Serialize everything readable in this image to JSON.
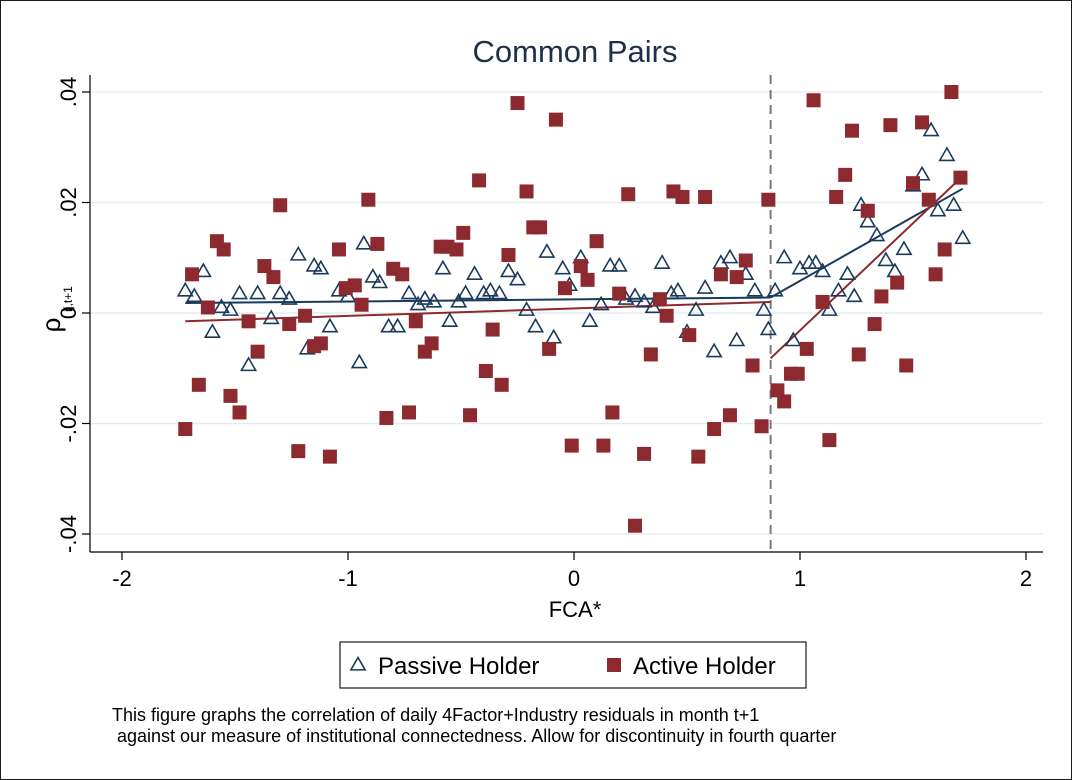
{
  "chart_data": {
    "type": "scatter",
    "title": "Common Pairs",
    "xlabel": "FCA*",
    "ylabel": "ρ",
    "ylabel_subscript": "ij,t+1",
    "xlim": [
      -2,
      2
    ],
    "ylim": [
      -0.04,
      0.04
    ],
    "x_ticks": [
      -2,
      -1,
      0,
      1,
      2
    ],
    "x_tick_labels": [
      "-2",
      "-1",
      "0",
      "1",
      "2"
    ],
    "y_ticks": [
      -0.04,
      -0.02,
      0,
      0.02,
      0.04
    ],
    "y_tick_labels": [
      "-.04",
      "-.02",
      "0",
      ".02",
      ".04"
    ],
    "grid": true,
    "discontinuity_x": 0.87,
    "legend_position": "bottom",
    "series": [
      {
        "name": "Passive Holder",
        "marker": "triangle-hollow",
        "color": "#1a3a5c",
        "points": [
          [
            -1.72,
            0.004
          ],
          [
            -1.68,
            0.003
          ],
          [
            -1.64,
            0.0075
          ],
          [
            -1.6,
            -0.0035
          ],
          [
            -1.56,
            0.001
          ],
          [
            -1.52,
            0.0005
          ],
          [
            -1.48,
            0.0035
          ],
          [
            -1.44,
            -0.0095
          ],
          [
            -1.4,
            0.0035
          ],
          [
            -1.34,
            -0.001
          ],
          [
            -1.3,
            0.0035
          ],
          [
            -1.26,
            0.0025
          ],
          [
            -1.22,
            0.0105
          ],
          [
            -1.18,
            -0.0065
          ],
          [
            -1.15,
            0.0085
          ],
          [
            -1.12,
            0.008
          ],
          [
            -1.08,
            -0.0025
          ],
          [
            -1.04,
            0.004
          ],
          [
            -1.0,
            0.003
          ],
          [
            -0.95,
            -0.009
          ],
          [
            -0.93,
            0.0125
          ],
          [
            -0.89,
            0.0065
          ],
          [
            -0.86,
            0.0055
          ],
          [
            -0.82,
            -0.0025
          ],
          [
            -0.78,
            -0.0025
          ],
          [
            -0.73,
            0.0035
          ],
          [
            -0.69,
            0.0015
          ],
          [
            -0.66,
            0.0025
          ],
          [
            -0.62,
            0.002
          ],
          [
            -0.58,
            0.008
          ],
          [
            -0.55,
            -0.0015
          ],
          [
            -0.51,
            0.002
          ],
          [
            -0.48,
            0.0035
          ],
          [
            -0.44,
            0.007
          ],
          [
            -0.4,
            0.0035
          ],
          [
            -0.37,
            0.004
          ],
          [
            -0.33,
            0.0035
          ],
          [
            -0.29,
            0.0075
          ],
          [
            -0.25,
            0.006
          ],
          [
            -0.21,
            0.0005
          ],
          [
            -0.17,
            -0.0025
          ],
          [
            -0.12,
            0.011
          ],
          [
            -0.09,
            -0.0045
          ],
          [
            -0.05,
            0.008
          ],
          [
            -0.02,
            0.005
          ],
          [
            0.03,
            0.01
          ],
          [
            0.07,
            -0.0015
          ],
          [
            0.12,
            0.0015
          ],
          [
            0.16,
            0.0085
          ],
          [
            0.2,
            0.0085
          ],
          [
            0.23,
            0.0025
          ],
          [
            0.27,
            0.003
          ],
          [
            0.31,
            0.002
          ],
          [
            0.35,
            0.001
          ],
          [
            0.39,
            0.009
          ],
          [
            0.43,
            0.0035
          ],
          [
            0.46,
            0.004
          ],
          [
            0.5,
            -0.0035
          ],
          [
            0.54,
            0.0005
          ],
          [
            0.58,
            0.0045
          ],
          [
            0.62,
            -0.007
          ],
          [
            0.65,
            0.009
          ],
          [
            0.69,
            0.01
          ],
          [
            0.72,
            -0.005
          ],
          [
            0.76,
            0.007
          ],
          [
            0.8,
            0.004
          ],
          [
            0.84,
            0.0005
          ],
          [
            0.86,
            -0.003
          ],
          [
            0.89,
            0.004
          ],
          [
            0.93,
            0.01
          ],
          [
            0.97,
            -0.005
          ],
          [
            1.0,
            0.008
          ],
          [
            1.04,
            0.009
          ],
          [
            1.07,
            0.009
          ],
          [
            1.1,
            0.0075
          ],
          [
            1.13,
            0.0005
          ],
          [
            1.17,
            0.004
          ],
          [
            1.21,
            0.007
          ],
          [
            1.24,
            0.003
          ],
          [
            1.27,
            0.0195
          ],
          [
            1.3,
            0.0165
          ],
          [
            1.34,
            0.014
          ],
          [
            1.38,
            0.0095
          ],
          [
            1.42,
            0.0075
          ],
          [
            1.46,
            0.0115
          ],
          [
            1.5,
            0.023
          ],
          [
            1.54,
            0.025
          ],
          [
            1.58,
            0.033
          ],
          [
            1.61,
            0.0185
          ],
          [
            1.65,
            0.0285
          ],
          [
            1.68,
            0.0195
          ],
          [
            1.72,
            0.0135
          ]
        ]
      },
      {
        "name": "Active Holder",
        "marker": "square-filled",
        "color": "#8c2a30",
        "points": [
          [
            -1.72,
            -0.021
          ],
          [
            -1.69,
            0.007
          ],
          [
            -1.66,
            -0.013
          ],
          [
            -1.62,
            0.001
          ],
          [
            -1.58,
            0.013
          ],
          [
            -1.55,
            0.0115
          ],
          [
            -1.52,
            -0.015
          ],
          [
            -1.48,
            -0.018
          ],
          [
            -1.44,
            -0.0015
          ],
          [
            -1.4,
            -0.007
          ],
          [
            -1.37,
            0.0085
          ],
          [
            -1.33,
            0.0065
          ],
          [
            -1.3,
            0.0195
          ],
          [
            -1.26,
            -0.002
          ],
          [
            -1.22,
            -0.025
          ],
          [
            -1.19,
            -0.0005
          ],
          [
            -1.15,
            -0.006
          ],
          [
            -1.12,
            -0.0055
          ],
          [
            -1.08,
            -0.026
          ],
          [
            -1.04,
            0.0115
          ],
          [
            -1.01,
            0.0045
          ],
          [
            -0.97,
            0.005
          ],
          [
            -0.94,
            0.0015
          ],
          [
            -0.91,
            0.0205
          ],
          [
            -0.87,
            0.0125
          ],
          [
            -0.83,
            -0.019
          ],
          [
            -0.8,
            0.008
          ],
          [
            -0.76,
            0.007
          ],
          [
            -0.73,
            -0.018
          ],
          [
            -0.7,
            -0.0015
          ],
          [
            -0.66,
            -0.007
          ],
          [
            -0.63,
            -0.0055
          ],
          [
            -0.59,
            0.012
          ],
          [
            -0.56,
            0.012
          ],
          [
            -0.52,
            0.0115
          ],
          [
            -0.49,
            0.0145
          ],
          [
            -0.46,
            -0.0185
          ],
          [
            -0.42,
            0.024
          ],
          [
            -0.39,
            -0.0105
          ],
          [
            -0.36,
            -0.003
          ],
          [
            -0.32,
            -0.013
          ],
          [
            -0.29,
            0.0105
          ],
          [
            -0.25,
            0.038
          ],
          [
            -0.21,
            0.022
          ],
          [
            -0.18,
            0.0155
          ],
          [
            -0.15,
            0.0155
          ],
          [
            -0.11,
            -0.0065
          ],
          [
            -0.08,
            0.035
          ],
          [
            -0.04,
            0.0045
          ],
          [
            -0.01,
            -0.024
          ],
          [
            0.03,
            0.0085
          ],
          [
            0.06,
            0.006
          ],
          [
            0.1,
            0.013
          ],
          [
            0.13,
            -0.024
          ],
          [
            0.17,
            -0.018
          ],
          [
            0.2,
            0.0035
          ],
          [
            0.24,
            0.0215
          ],
          [
            0.27,
            -0.0385
          ],
          [
            0.31,
            -0.0255
          ],
          [
            0.34,
            -0.0075
          ],
          [
            0.38,
            0.0025
          ],
          [
            0.41,
            -0.0005
          ],
          [
            0.44,
            0.022
          ],
          [
            0.48,
            0.021
          ],
          [
            0.51,
            -0.004
          ],
          [
            0.55,
            -0.026
          ],
          [
            0.58,
            0.021
          ],
          [
            0.62,
            -0.021
          ],
          [
            0.65,
            0.007
          ],
          [
            0.69,
            -0.0185
          ],
          [
            0.72,
            0.0065
          ],
          [
            0.76,
            0.0095
          ],
          [
            0.79,
            -0.0095
          ],
          [
            0.83,
            -0.0205
          ],
          [
            0.86,
            0.0205
          ],
          [
            0.9,
            -0.014
          ],
          [
            0.93,
            -0.016
          ],
          [
            0.96,
            -0.011
          ],
          [
            0.99,
            -0.011
          ],
          [
            1.03,
            -0.0065
          ],
          [
            1.06,
            0.0385
          ],
          [
            1.1,
            0.002
          ],
          [
            1.13,
            -0.023
          ],
          [
            1.16,
            0.021
          ],
          [
            1.2,
            0.025
          ],
          [
            1.23,
            0.033
          ],
          [
            1.26,
            -0.0075
          ],
          [
            1.3,
            0.0185
          ],
          [
            1.33,
            -0.002
          ],
          [
            1.36,
            0.003
          ],
          [
            1.4,
            0.034
          ],
          [
            1.43,
            0.0055
          ],
          [
            1.47,
            -0.0095
          ],
          [
            1.5,
            0.0235
          ],
          [
            1.54,
            0.0345
          ],
          [
            1.57,
            0.0205
          ],
          [
            1.6,
            0.007
          ],
          [
            1.64,
            0.0115
          ],
          [
            1.67,
            0.04
          ],
          [
            1.71,
            0.0245
          ]
        ]
      }
    ],
    "fit_lines": [
      {
        "series": "Passive Holder",
        "segments": [
          [
            [
              -1.72,
              0.0018
            ],
            [
              0.87,
              0.0028
            ]
          ],
          [
            [
              0.87,
              0.0028
            ],
            [
              1.72,
              0.0225
            ]
          ]
        ]
      },
      {
        "series": "Active Holder",
        "segments": [
          [
            [
              -1.72,
              -0.0015
            ],
            [
              0.87,
              0.002
            ]
          ],
          [
            [
              0.87,
              -0.0082
            ],
            [
              1.72,
              0.0248
            ]
          ]
        ]
      }
    ]
  },
  "legend": {
    "passive_label": "Passive Holder",
    "active_label": "Active Holder"
  },
  "note": {
    "line1": "This figure graphs the correlation of daily 4Factor+Industry residuals in month t+1",
    "line2": " against our measure of institutional connectedness. Allow for discontinuity in fourth quarter"
  },
  "colors": {
    "passive": "#1a3a5c",
    "active": "#8c2a30",
    "grid": "#e3ecef",
    "discontinuity": "#7a7a7a",
    "title": "#1e2f4a"
  }
}
